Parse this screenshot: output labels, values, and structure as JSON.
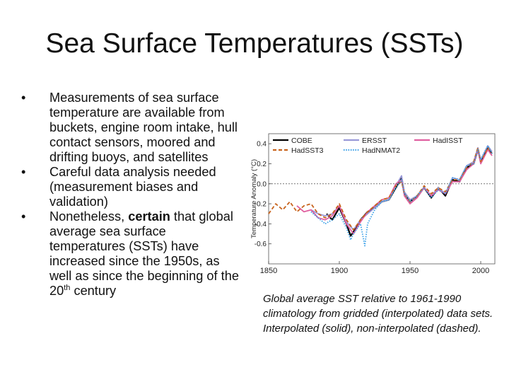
{
  "slide": {
    "title": "Sea Surface Temperatures (SSTs)",
    "bullets": [
      {
        "text": "Measurements of sea surface temperature are available from buckets, engine room intake, hull contact sensors, moored and drifting buoys, and satellites"
      },
      {
        "text": "Careful data analysis needed (measurement biases and validation)"
      },
      {
        "pre": "Nonetheless, ",
        "bold": "certain",
        "mid": " that global average sea surface temperatures (SSTs) have increased since the 1950s, as well as since the beginning of the 20",
        "sup": "th",
        "post": " century"
      }
    ],
    "bullet_glyph": "•",
    "caption": "Global average SST relative to 1961-1990 climatology from gridded (interpolated) data sets.  Interpolated (solid), non-interpolated (dashed)."
  },
  "chart_data": {
    "type": "line",
    "ylabel": "Temperature Anomaly (°C)",
    "xlim": [
      1850,
      2010
    ],
    "ylim": [
      -0.8,
      0.5
    ],
    "x_ticks": [
      1850,
      1900,
      1950,
      2000
    ],
    "y_ticks": [
      -0.6,
      -0.4,
      -0.2,
      0.0,
      0.2,
      0.4
    ],
    "y_tick_labels": [
      "-0.6",
      "-0.4",
      "-0.2",
      "0.0",
      "0.2",
      "0.4"
    ],
    "zero_line": "dotted",
    "legend_position": "top",
    "series": [
      {
        "name": "COBE",
        "color": "#000000",
        "style": "solid",
        "x": [
          1891,
          1895,
          1900,
          1905,
          1908,
          1910,
          1915,
          1920,
          1925,
          1930,
          1935,
          1940,
          1944,
          1946,
          1950,
          1955,
          1960,
          1965,
          1970,
          1975,
          1980,
          1985,
          1990,
          1995,
          1998,
          2000,
          2005,
          2008
        ],
        "y": [
          -0.3,
          -0.36,
          -0.24,
          -0.4,
          -0.52,
          -0.48,
          -0.36,
          -0.28,
          -0.24,
          -0.18,
          -0.16,
          -0.04,
          0.06,
          -0.1,
          -0.18,
          -0.12,
          -0.04,
          -0.14,
          -0.04,
          -0.12,
          0.04,
          0.02,
          0.16,
          0.2,
          0.34,
          0.22,
          0.36,
          0.3
        ]
      },
      {
        "name": "ERSST",
        "color": "#9a9ad8",
        "style": "solid",
        "x": [
          1880,
          1885,
          1890,
          1895,
          1900,
          1905,
          1910,
          1915,
          1920,
          1925,
          1930,
          1935,
          1940,
          1944,
          1946,
          1950,
          1955,
          1960,
          1965,
          1970,
          1975,
          1980,
          1985,
          1990,
          1995,
          1998,
          2000,
          2005,
          2008
        ],
        "y": [
          -0.26,
          -0.3,
          -0.32,
          -0.3,
          -0.22,
          -0.38,
          -0.46,
          -0.36,
          -0.3,
          -0.24,
          -0.18,
          -0.16,
          -0.02,
          0.08,
          -0.08,
          -0.16,
          -0.12,
          -0.04,
          -0.12,
          -0.04,
          -0.1,
          0.06,
          0.04,
          0.18,
          0.22,
          0.36,
          0.24,
          0.38,
          0.32
        ]
      },
      {
        "name": "HadISST",
        "color": "#e060a0",
        "style": "solid",
        "x": [
          1870,
          1875,
          1880,
          1885,
          1890,
          1895,
          1900,
          1905,
          1910,
          1915,
          1920,
          1925,
          1930,
          1935,
          1940,
          1944,
          1946,
          1950,
          1955,
          1960,
          1965,
          1970,
          1975,
          1980,
          1985,
          1990,
          1995,
          1998,
          2000,
          2005,
          2008
        ],
        "y": [
          -0.22,
          -0.28,
          -0.26,
          -0.34,
          -0.36,
          -0.32,
          -0.22,
          -0.4,
          -0.5,
          -0.38,
          -0.28,
          -0.22,
          -0.16,
          -0.14,
          0.0,
          0.04,
          -0.12,
          -0.2,
          -0.14,
          -0.04,
          -0.12,
          -0.06,
          -0.1,
          0.02,
          0.02,
          0.14,
          0.2,
          0.34,
          0.2,
          0.34,
          0.28
        ]
      },
      {
        "name": "HadSST3",
        "color": "#c8641e",
        "style": "dashed",
        "x": [
          1850,
          1855,
          1860,
          1865,
          1870,
          1875,
          1880,
          1885,
          1890,
          1895,
          1900,
          1905,
          1910,
          1915,
          1920,
          1925,
          1930,
          1935,
          1940,
          1944,
          1946,
          1950,
          1955,
          1960,
          1965,
          1970,
          1975,
          1980,
          1985,
          1990,
          1995,
          1998,
          2000,
          2005,
          2008
        ],
        "y": [
          -0.3,
          -0.2,
          -0.26,
          -0.18,
          -0.28,
          -0.22,
          -0.2,
          -0.3,
          -0.34,
          -0.3,
          -0.2,
          -0.36,
          -0.46,
          -0.36,
          -0.28,
          -0.22,
          -0.16,
          -0.14,
          -0.02,
          0.02,
          -0.1,
          -0.18,
          -0.12,
          -0.02,
          -0.1,
          -0.04,
          -0.08,
          0.04,
          0.04,
          0.16,
          0.22,
          0.36,
          0.22,
          0.36,
          0.3
        ]
      },
      {
        "name": "HadNMAT2",
        "color": "#3aa0e8",
        "style": "dotted",
        "x": [
          1880,
          1885,
          1890,
          1895,
          1900,
          1905,
          1908,
          1910,
          1915,
          1918,
          1920,
          1925,
          1930,
          1935,
          1940,
          1944,
          1946,
          1950,
          1955,
          1960,
          1965,
          1970,
          1975,
          1980,
          1985,
          1990,
          1995,
          1998,
          2000,
          2005,
          2008
        ],
        "y": [
          -0.28,
          -0.34,
          -0.4,
          -0.36,
          -0.3,
          -0.44,
          -0.56,
          -0.5,
          -0.4,
          -0.62,
          -0.4,
          -0.26,
          -0.18,
          -0.16,
          -0.04,
          0.04,
          -0.1,
          -0.18,
          -0.12,
          -0.04,
          -0.14,
          -0.06,
          -0.1,
          0.06,
          0.04,
          0.18,
          0.2,
          0.34,
          0.24,
          0.38,
          0.3
        ]
      }
    ]
  }
}
